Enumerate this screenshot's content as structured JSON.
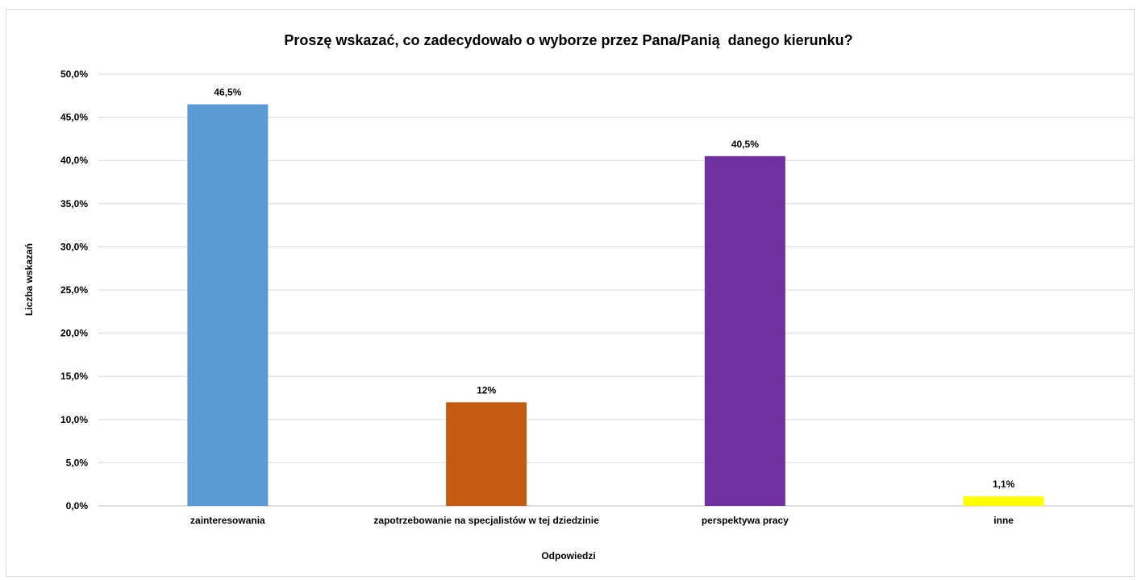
{
  "chart_data": {
    "type": "bar",
    "title": "Proszę wskazać, co zadecydowało o wyborze przez Pana/Panią  danego kierunku?",
    "xlabel": "Odpowiedzi",
    "ylabel": "Liczba wskazań",
    "categories": [
      "zainteresowania",
      "zapotrzebowanie na specjalistów w tej dziedzinie",
      "perspektywa pracy",
      "inne"
    ],
    "values": [
      46.5,
      12,
      40.5,
      1.1
    ],
    "data_labels": [
      "46,5%",
      "12%",
      "40,5%",
      "1,1%"
    ],
    "bar_colors": [
      "#5B9BD5",
      "#C55A11",
      "#7030A0",
      "#FFFF00"
    ],
    "ylim": [
      0,
      50
    ],
    "yticks": [
      0,
      5,
      10,
      15,
      20,
      25,
      30,
      35,
      40,
      45,
      50
    ],
    "ytick_labels": [
      "0,0%",
      "5,0%",
      "10,0%",
      "15,0%",
      "20,0%",
      "25,0%",
      "30,0%",
      "35,0%",
      "40,0%",
      "45,0%",
      "50,0%"
    ],
    "grid": true,
    "legend": "none"
  }
}
